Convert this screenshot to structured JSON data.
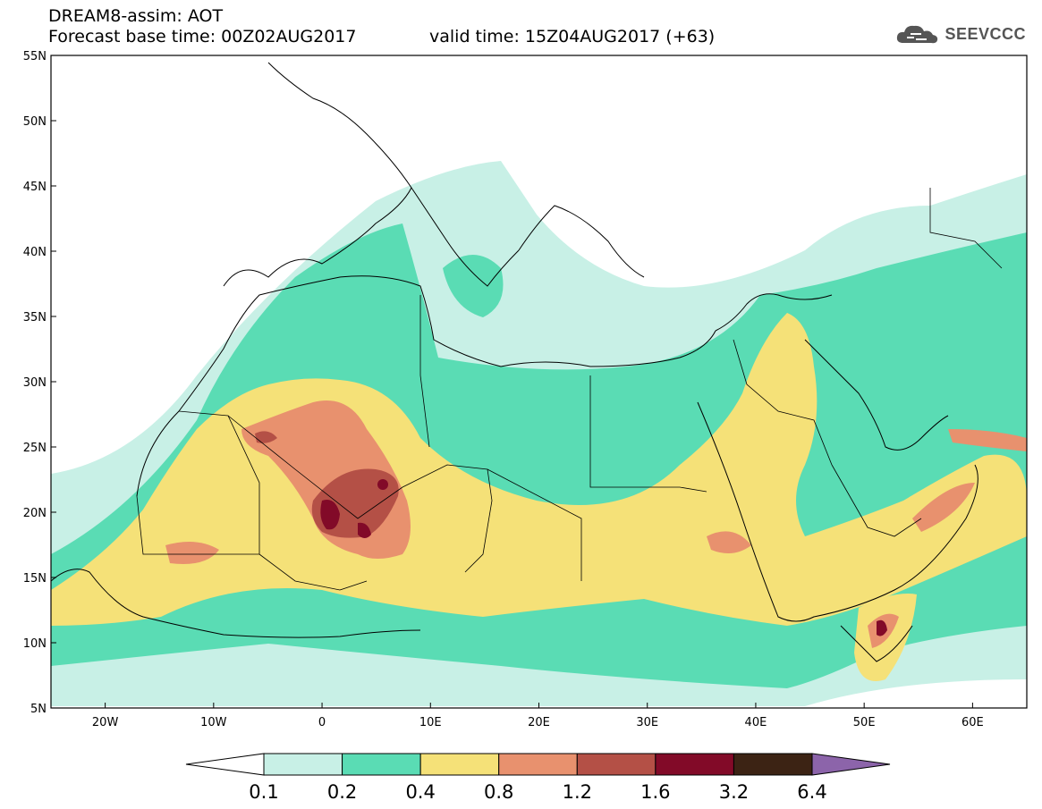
{
  "title": {
    "line1": "DREAM8-assim: AOT",
    "line2a": "Forecast base time: 00Z02AUG2017",
    "line2b": "valid time: 15Z04AUG2017 (+63)"
  },
  "logo": {
    "text": "SEEVCCC",
    "icon": "cloud-icon"
  },
  "map": {
    "lon_range": [
      -25,
      65
    ],
    "lat_range": [
      5,
      55
    ],
    "lon_ticks": [
      {
        "v": -20,
        "label": "20W"
      },
      {
        "v": -10,
        "label": "10W"
      },
      {
        "v": 0,
        "label": "0"
      },
      {
        "v": 10,
        "label": "10E"
      },
      {
        "v": 20,
        "label": "20E"
      },
      {
        "v": 30,
        "label": "30E"
      },
      {
        "v": 40,
        "label": "40E"
      },
      {
        "v": 50,
        "label": "50E"
      },
      {
        "v": 60,
        "label": "60E"
      }
    ],
    "lat_ticks": [
      {
        "v": 55,
        "label": "55N"
      },
      {
        "v": 50,
        "label": "50N"
      },
      {
        "v": 45,
        "label": "45N"
      },
      {
        "v": 40,
        "label": "40N"
      },
      {
        "v": 35,
        "label": "35N"
      },
      {
        "v": 30,
        "label": "30N"
      },
      {
        "v": 25,
        "label": "25N"
      },
      {
        "v": 20,
        "label": "20N"
      },
      {
        "v": 15,
        "label": "15N"
      },
      {
        "v": 10,
        "label": "10N"
      },
      {
        "v": 5,
        "label": "5N"
      }
    ]
  },
  "colorbar": {
    "colors": [
      "#ffffff",
      "#c8f0e6",
      "#5adcb4",
      "#f5e178",
      "#e8916e",
      "#b45046",
      "#820a28",
      "#3c2314",
      "#8c64aa"
    ],
    "labels": [
      "0.1",
      "0.2",
      "0.4",
      "0.8",
      "1.2",
      "1.6",
      "3.2",
      "6.4"
    ]
  }
}
